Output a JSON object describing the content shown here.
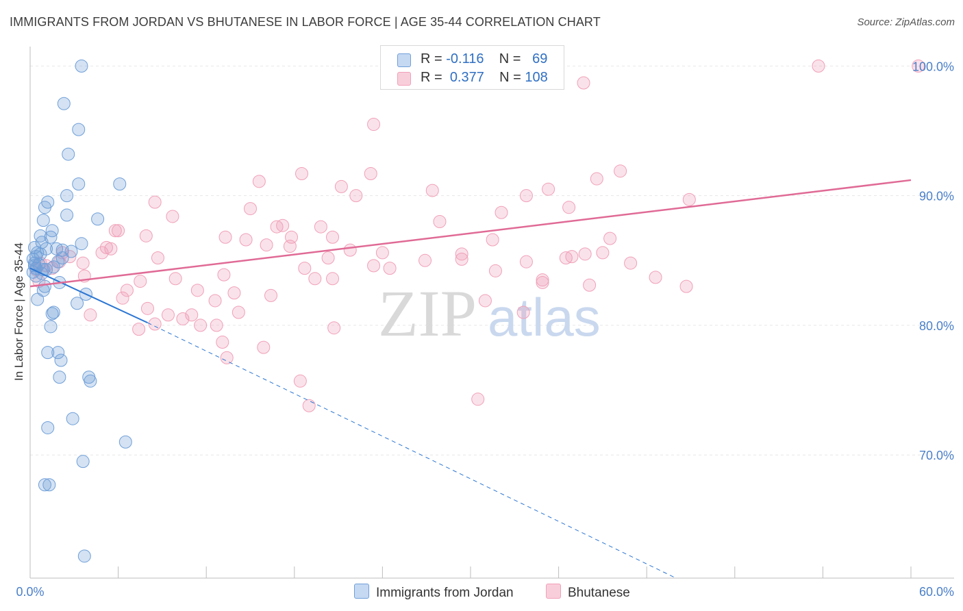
{
  "title": "IMMIGRANTS FROM JORDAN VS BHUTANESE IN LABOR FORCE | AGE 35-44 CORRELATION CHART",
  "source": "Source: ZipAtlas.com",
  "watermark": {
    "zip": "ZIP",
    "atlas": "atlas"
  },
  "colors": {
    "blue": "#6f9fd8",
    "blue_line": "#2a75d3",
    "pink": "#f0a0b8",
    "pink_line": "#e06a95",
    "tick_text": "#4a7fc8"
  },
  "legend": {
    "rows": [
      {
        "r_label": "R = ",
        "r_value": "-0.116",
        "n_label": "N = ",
        "n_value": "69"
      },
      {
        "r_label": "R = ",
        "r_value": "0.377",
        "n_label": "N = ",
        "n_value": "108"
      }
    ]
  },
  "bottom_legend": [
    "Immigrants from Jordan",
    "Bhutanese"
  ],
  "chart_data": {
    "type": "scatter",
    "title": "IMMIGRANTS FROM JORDAN VS BHUTANESE IN LABOR FORCE | AGE 35-44 CORRELATION CHART",
    "xlabel": "",
    "ylabel": "In Labor Force | Age 35-44",
    "xlim": [
      0,
      60
    ],
    "ylim": [
      60.5,
      101.5
    ],
    "x_tick_labels": [
      "0.0%",
      "60.0%"
    ],
    "y_ticks": [
      70,
      80,
      90,
      100
    ],
    "y_tick_labels": [
      "70.0%",
      "80.0%",
      "90.0%",
      "100.0%"
    ],
    "grid": true,
    "series": [
      {
        "name": "Immigrants from Jordan",
        "color": "#6f9fd8",
        "trend": {
          "x": [
            0,
            8.0
          ],
          "y": [
            84.4,
            80.2
          ],
          "dashed_to": [
            44.0,
            60.5
          ]
        },
        "points": [
          [
            3.5,
            100.0
          ],
          [
            2.3,
            97.1
          ],
          [
            3.3,
            95.1
          ],
          [
            2.6,
            93.2
          ],
          [
            3.3,
            90.9
          ],
          [
            6.1,
            90.9
          ],
          [
            2.5,
            90.0
          ],
          [
            1.2,
            89.5
          ],
          [
            1.0,
            89.1
          ],
          [
            2.5,
            88.5
          ],
          [
            4.6,
            88.2
          ],
          [
            0.9,
            88.1
          ],
          [
            1.5,
            87.3
          ],
          [
            0.7,
            86.9
          ],
          [
            1.4,
            86.8
          ],
          [
            0.8,
            86.4
          ],
          [
            3.5,
            86.3
          ],
          [
            0.3,
            86.0
          ],
          [
            1.1,
            85.9
          ],
          [
            1.8,
            85.9
          ],
          [
            2.2,
            85.8
          ],
          [
            2.8,
            85.7
          ],
          [
            0.5,
            85.6
          ],
          [
            0.7,
            85.5
          ],
          [
            0.4,
            85.3
          ],
          [
            2.2,
            85.2
          ],
          [
            0.2,
            85.1
          ],
          [
            1.9,
            84.9
          ],
          [
            0.3,
            84.8
          ],
          [
            0.6,
            84.7
          ],
          [
            0.3,
            84.6
          ],
          [
            1.6,
            84.5
          ],
          [
            0.4,
            84.4
          ],
          [
            0.9,
            84.3
          ],
          [
            1.1,
            84.3
          ],
          [
            0.2,
            84.1
          ],
          [
            0.8,
            84.0
          ],
          [
            0.4,
            83.8
          ],
          [
            2.0,
            83.3
          ],
          [
            1.0,
            83.0
          ],
          [
            0.9,
            82.7
          ],
          [
            3.8,
            82.4
          ],
          [
            0.5,
            82.0
          ],
          [
            3.2,
            81.7
          ],
          [
            1.6,
            81.0
          ],
          [
            1.5,
            80.9
          ],
          [
            1.4,
            79.9
          ],
          [
            1.2,
            77.9
          ],
          [
            1.9,
            77.9
          ],
          [
            2.1,
            77.3
          ],
          [
            4.0,
            76.0
          ],
          [
            2.0,
            76.0
          ],
          [
            4.1,
            75.7
          ],
          [
            1.2,
            72.1
          ],
          [
            2.9,
            72.8
          ],
          [
            6.5,
            71.0
          ],
          [
            3.6,
            69.5
          ],
          [
            1.0,
            67.7
          ],
          [
            1.3,
            67.7
          ],
          [
            3.7,
            62.2
          ]
        ]
      },
      {
        "name": "Bhutanese",
        "color": "#f0a0b8",
        "trend": {
          "x": [
            0,
            60
          ],
          "y": [
            83.0,
            91.2
          ]
        },
        "points": [
          [
            53.7,
            100.0
          ],
          [
            60.5,
            100.0
          ],
          [
            37.7,
            98.7
          ],
          [
            23.4,
            95.5
          ],
          [
            23.2,
            91.7
          ],
          [
            18.5,
            91.7
          ],
          [
            40.2,
            91.9
          ],
          [
            38.6,
            91.3
          ],
          [
            15.6,
            91.1
          ],
          [
            21.2,
            90.7
          ],
          [
            27.4,
            90.4
          ],
          [
            35.3,
            90.5
          ],
          [
            22.2,
            90.0
          ],
          [
            33.8,
            90.0
          ],
          [
            8.5,
            89.5
          ],
          [
            44.9,
            89.7
          ],
          [
            15.0,
            89.0
          ],
          [
            36.7,
            89.1
          ],
          [
            32.1,
            88.7
          ],
          [
            9.7,
            88.4
          ],
          [
            27.9,
            88.0
          ],
          [
            16.8,
            87.6
          ],
          [
            17.2,
            87.7
          ],
          [
            19.8,
            87.6
          ],
          [
            5.8,
            87.3
          ],
          [
            6.0,
            87.3
          ],
          [
            7.9,
            86.9
          ],
          [
            13.3,
            86.8
          ],
          [
            14.7,
            86.6
          ],
          [
            17.8,
            86.8
          ],
          [
            20.6,
            86.8
          ],
          [
            31.5,
            86.6
          ],
          [
            39.5,
            86.7
          ],
          [
            16.1,
            86.2
          ],
          [
            17.7,
            86.1
          ],
          [
            5.2,
            86.0
          ],
          [
            5.5,
            85.9
          ],
          [
            4.9,
            85.6
          ],
          [
            21.8,
            85.8
          ],
          [
            24.0,
            85.6
          ],
          [
            2.2,
            85.6
          ],
          [
            2.7,
            85.3
          ],
          [
            8.7,
            85.2
          ],
          [
            20.3,
            85.2
          ],
          [
            26.9,
            85.0
          ],
          [
            29.4,
            85.1
          ],
          [
            33.8,
            84.9
          ],
          [
            36.5,
            85.2
          ],
          [
            37.8,
            85.5
          ],
          [
            39.0,
            85.6
          ],
          [
            40.9,
            84.8
          ],
          [
            2.0,
            84.9
          ],
          [
            3.6,
            84.8
          ],
          [
            0.7,
            84.8
          ],
          [
            1.1,
            84.6
          ],
          [
            1.5,
            84.4
          ],
          [
            18.7,
            84.4
          ],
          [
            23.4,
            84.6
          ],
          [
            24.5,
            84.4
          ],
          [
            31.7,
            84.2
          ],
          [
            13.2,
            83.9
          ],
          [
            0.4,
            84.3
          ],
          [
            3.7,
            83.8
          ],
          [
            9.9,
            83.6
          ],
          [
            19.4,
            83.6
          ],
          [
            20.6,
            83.6
          ],
          [
            34.9,
            83.5
          ],
          [
            42.6,
            83.7
          ],
          [
            0.6,
            83.4
          ],
          [
            7.5,
            83.4
          ],
          [
            38.1,
            83.1
          ],
          [
            44.7,
            83.0
          ],
          [
            11.4,
            82.7
          ],
          [
            6.6,
            82.7
          ],
          [
            13.9,
            82.5
          ],
          [
            16.4,
            82.3
          ],
          [
            6.3,
            82.1
          ],
          [
            12.6,
            81.9
          ],
          [
            31.0,
            81.9
          ],
          [
            8.0,
            81.3
          ],
          [
            14.2,
            81.0
          ],
          [
            4.1,
            80.8
          ],
          [
            9.4,
            80.8
          ],
          [
            11.0,
            80.8
          ],
          [
            10.4,
            80.5
          ],
          [
            11.6,
            80.0
          ],
          [
            12.7,
            80.0
          ],
          [
            8.5,
            80.1
          ],
          [
            20.7,
            79.8
          ],
          [
            7.4,
            79.7
          ],
          [
            13.1,
            78.7
          ],
          [
            15.9,
            78.3
          ],
          [
            13.4,
            77.5
          ],
          [
            18.4,
            75.7
          ],
          [
            19.0,
            73.8
          ],
          [
            30.5,
            74.3
          ],
          [
            33.6,
            81.0
          ],
          [
            34.9,
            83.3
          ],
          [
            36.9,
            85.3
          ],
          [
            29.4,
            85.5
          ]
        ]
      }
    ]
  }
}
